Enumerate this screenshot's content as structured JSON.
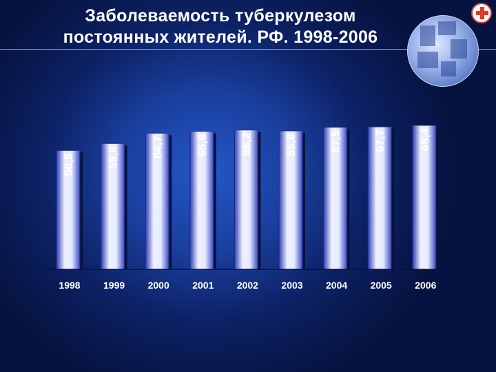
{
  "slide": {
    "title_line1": "Заболеваемость туберкулезом",
    "title_line2": "постоянных жителей. РФ.  1998-2006"
  },
  "colors": {
    "bar_light": "#eef1ff",
    "bar_dark": "#4455c8",
    "bar_edge": "#1d2a8a",
    "background": "#0d2266"
  },
  "icons": [
    "globe-photo-icon",
    "red-cross-logo-icon"
  ],
  "chart_data": {
    "type": "bar",
    "categories": [
      "1998",
      "1999",
      "2000",
      "2001",
      "2002",
      "2003",
      "2004",
      "2005",
      "2006"
    ],
    "values": [
      56.5,
      59.8,
      64.7,
      65.6,
      66.2,
      65.8,
      67.5,
      67.7,
      68.4
    ],
    "value_labels": [
      "56,5",
      "59,8",
      "64,7",
      "65,6",
      "66,2",
      "65,8",
      "67,5",
      "67,7",
      "68,4"
    ],
    "ylim": [
      0,
      72
    ],
    "grid": false,
    "data_labels_rotated": true
  }
}
